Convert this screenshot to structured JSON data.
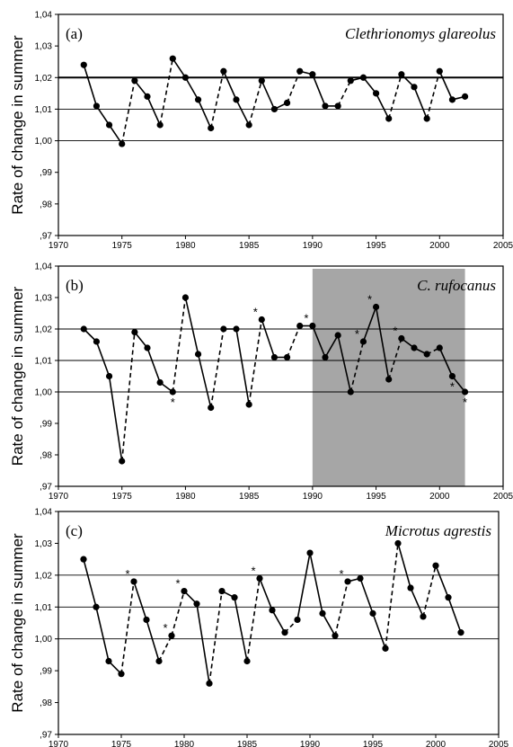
{
  "chart_data": [
    {
      "type": "line",
      "panel_label": "(a)",
      "title": "Clethrionomys glareolus",
      "ylabel": "Rate of change in summer",
      "xlim": [
        1970,
        2005
      ],
      "ylim": [
        0.97,
        1.04
      ],
      "x_ticks": [
        "1970",
        "1975",
        "1980",
        "1985",
        "1990",
        "1995",
        "2000",
        "2005"
      ],
      "y_ticks": [
        "1,04",
        "1,03",
        "1,02",
        "1,01",
        "1,00",
        ",99",
        ",98",
        ",97"
      ],
      "gridlines": [
        {
          "y": 1.02,
          "bold": true
        },
        {
          "y": 1.01,
          "bold": false
        },
        {
          "y": 1.0,
          "bold": false
        }
      ],
      "series": [
        {
          "x": [
            1972,
            1973,
            1974,
            1975,
            1976,
            1977,
            1978,
            1979,
            1980,
            1981,
            1982,
            1983,
            1984,
            1985,
            1986,
            1987,
            1988,
            1989,
            1990,
            1991,
            1992,
            1993,
            1994,
            1995,
            1996,
            1997,
            1998,
            1999,
            2000,
            2001,
            2002
          ],
          "y": [
            1.024,
            1.011,
            1.005,
            0.999,
            1.019,
            1.014,
            1.005,
            1.026,
            1.02,
            1.013,
            1.004,
            1.022,
            1.013,
            1.005,
            1.019,
            1.01,
            1.012,
            1.022,
            1.021,
            1.011,
            1.011,
            1.019,
            1.02,
            1.015,
            1.007,
            1.021,
            1.017,
            1.007,
            1.022,
            1.013,
            1.014
          ]
        }
      ],
      "dashed_into_x": [
        1976,
        1979,
        1983,
        1986,
        1989,
        1993,
        1997,
        2000
      ],
      "asterisks_x": [],
      "shaded_range": null
    },
    {
      "type": "line",
      "panel_label": "(b)",
      "title": "C. rufocanus",
      "ylabel": "Rate of change in summer",
      "xlim": [
        1970,
        2005
      ],
      "ylim": [
        0.97,
        1.04
      ],
      "x_ticks": [
        "1970",
        "1975",
        "1980",
        "1985",
        "1990",
        "1995",
        "2000",
        "2005"
      ],
      "y_ticks": [
        "1,04",
        "1,03",
        "1,02",
        "1,01",
        "1,00",
        ",99",
        ",98",
        ",97"
      ],
      "gridlines": [
        {
          "y": 1.02,
          "bold": false
        },
        {
          "y": 1.01,
          "bold": false
        },
        {
          "y": 1.0,
          "bold": false
        }
      ],
      "series": [
        {
          "x": [
            1972,
            1973,
            1974,
            1975,
            1976,
            1977,
            1978,
            1979,
            1980,
            1981,
            1982,
            1983,
            1984,
            1985,
            1986,
            1987,
            1988,
            1989,
            1990,
            1991,
            1992,
            1993,
            1994,
            1995,
            1996,
            1997,
            1998,
            1999,
            2000,
            2001,
            2002
          ],
          "y": [
            1.02,
            1.016,
            1.005,
            0.978,
            1.019,
            1.014,
            1.003,
            1.0,
            1.03,
            1.012,
            0.995,
            1.02,
            1.02,
            0.996,
            1.023,
            1.011,
            1.011,
            1.021,
            1.021,
            1.011,
            1.018,
            1.0,
            1.016,
            1.027,
            1.004,
            1.017,
            1.014,
            1.012,
            1.014,
            1.005,
            1.0
          ]
        }
      ],
      "dashed_into_x": [
        1976,
        1980,
        1983,
        1986,
        1989,
        1994,
        1997,
        2000
      ],
      "asterisks_x": [
        1979,
        1986,
        1990,
        1994,
        1995,
        1997,
        2001,
        2002
      ],
      "shaded_range": [
        1990,
        2002
      ]
    },
    {
      "type": "line",
      "panel_label": "(c)",
      "title": "Microtus agrestis",
      "ylabel": "Rate of change in summer",
      "xlim": [
        1970,
        2005
      ],
      "ylim": [
        0.97,
        1.04
      ],
      "x_ticks": [
        "1970",
        "1975",
        "1980",
        "1985",
        "1990",
        "1995",
        "2000",
        "2005"
      ],
      "y_ticks": [
        "1,04",
        "1,03",
        "1,02",
        "1,01",
        "1,00",
        ",99",
        ",98",
        ",97"
      ],
      "gridlines": [
        {
          "y": 1.02,
          "bold": false
        },
        {
          "y": 1.01,
          "bold": false
        },
        {
          "y": 1.0,
          "bold": false
        }
      ],
      "series": [
        {
          "x": [
            1972,
            1973,
            1974,
            1975,
            1976,
            1977,
            1978,
            1979,
            1980,
            1981,
            1982,
            1983,
            1984,
            1985,
            1986,
            1987,
            1988,
            1989,
            1990,
            1991,
            1992,
            1993,
            1994,
            1995,
            1996,
            1997,
            1998,
            1999,
            2000,
            2001,
            2002
          ],
          "y": [
            1.025,
            1.01,
            0.993,
            0.989,
            1.018,
            1.006,
            0.993,
            1.001,
            1.015,
            1.011,
            0.986,
            1.015,
            1.013,
            0.993,
            1.019,
            1.009,
            1.002,
            1.006,
            1.027,
            1.008,
            1.001,
            1.018,
            1.019,
            1.008,
            0.997,
            1.03,
            1.016,
            1.007,
            1.023,
            1.013,
            1.002
          ]
        }
      ],
      "dashed_into_x": [
        1976,
        1979,
        1980,
        1983,
        1986,
        1989,
        1993,
        1997,
        2000
      ],
      "asterisks_x": [
        1976,
        1979,
        1980,
        1986,
        1993
      ],
      "shaded_range": null
    }
  ]
}
